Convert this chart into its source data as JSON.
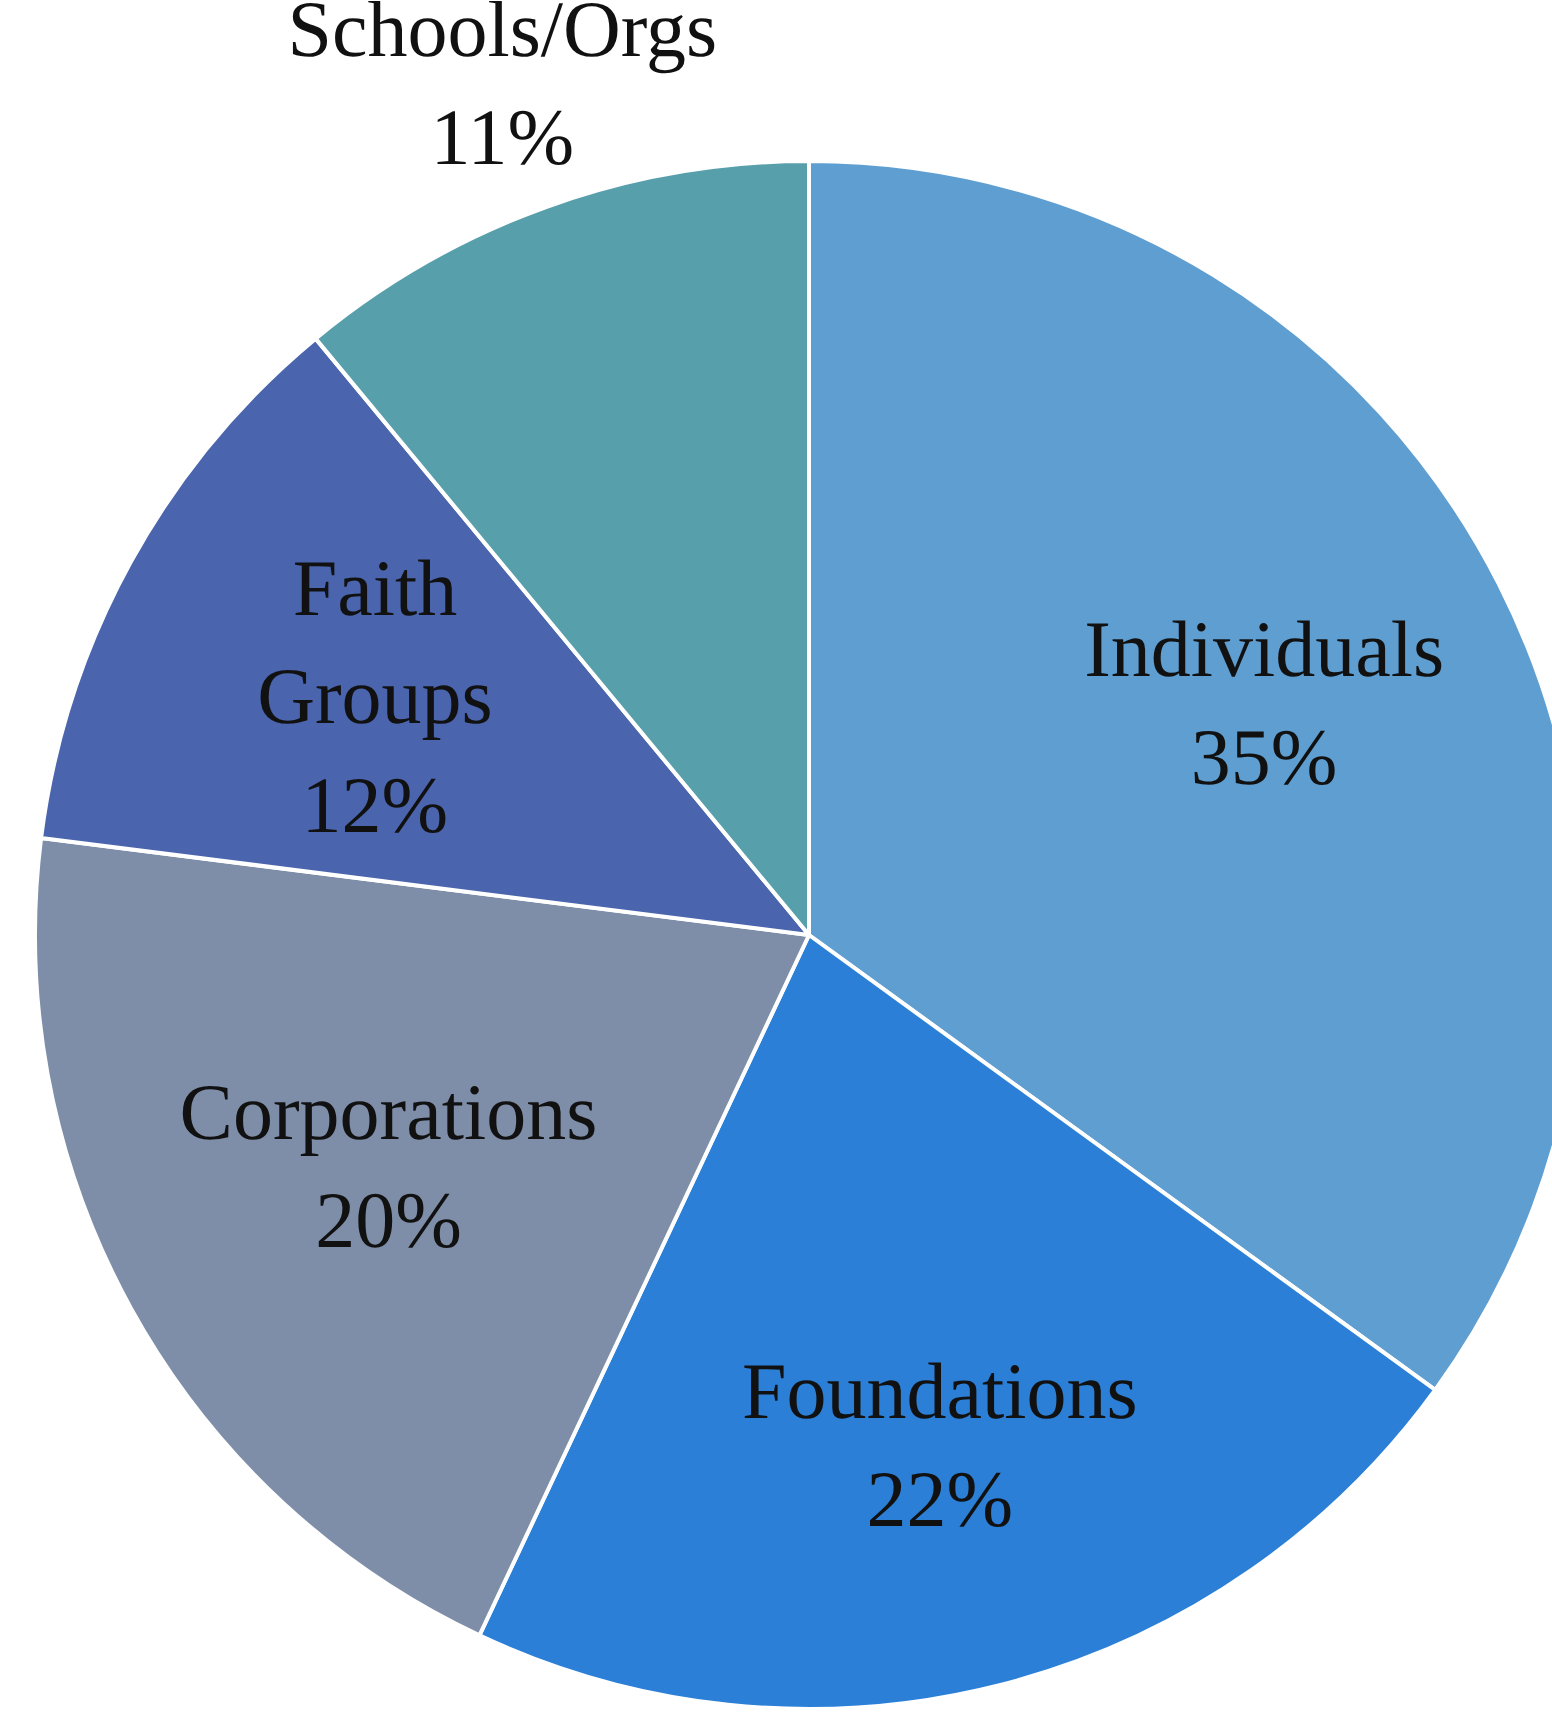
{
  "chart_data": {
    "type": "pie",
    "categories": [
      "Individuals",
      "Foundations",
      "Corporations",
      "Faith\nGroups",
      "Schools/Orgs"
    ],
    "values": [
      35,
      22,
      20,
      12,
      11
    ],
    "colors": [
      "#5f9ed1",
      "#2b7fd6",
      "#7f8ea8",
      "#4a65ad",
      "#589fac"
    ],
    "value_labels": [
      "35%",
      "22%",
      "20%",
      "12%",
      "11%"
    ],
    "legend": false
  }
}
